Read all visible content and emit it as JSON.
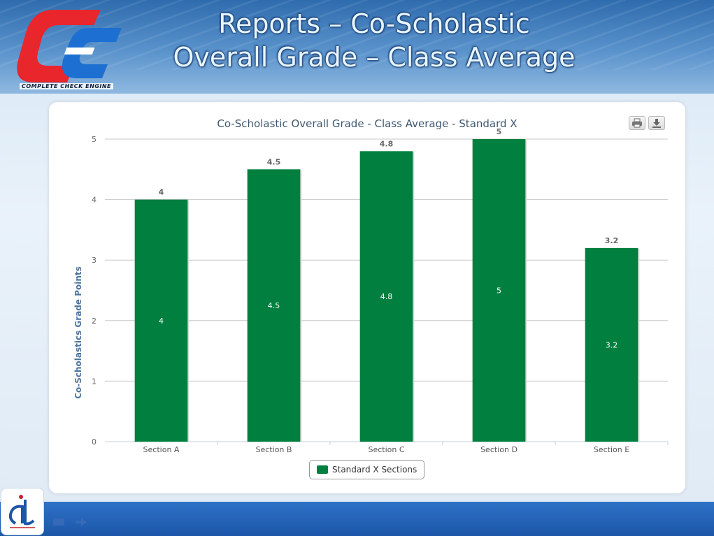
{
  "header": {
    "title_line1": "Reports – Co-Scholastic",
    "title_line2": "Overall Grade – Class Average",
    "logo_caption": "Complete Check Engine"
  },
  "toolbar": {
    "print_icon": "printer-icon",
    "download_icon": "download-icon"
  },
  "chart_data": {
    "type": "bar",
    "title": "Co-Scholastic Overall Grade - Class Average - Standard X",
    "xlabel": "",
    "ylabel": "Co-Scholastics Grade Points",
    "categories": [
      "Section A",
      "Section B",
      "Section C",
      "Section D",
      "Section E"
    ],
    "series": [
      {
        "name": "Standard X Sections",
        "values": [
          4,
          4.5,
          4.8,
          5,
          3.2
        ],
        "color": "#007f3f"
      }
    ],
    "ylim": [
      0,
      5
    ],
    "yticks": [
      "0",
      "1",
      "2",
      "3",
      "4",
      "5"
    ],
    "data_labels_top": [
      "4",
      "4.5",
      "4.8",
      "5",
      "3.2"
    ],
    "data_labels_inside": [
      "4",
      "4.5",
      "4.8",
      "5",
      "3.2"
    ],
    "grid": true,
    "legend_position": "bottom-center"
  },
  "footer": {
    "nav_icons": [
      "menu-icon",
      "next-arrow-icon"
    ]
  }
}
